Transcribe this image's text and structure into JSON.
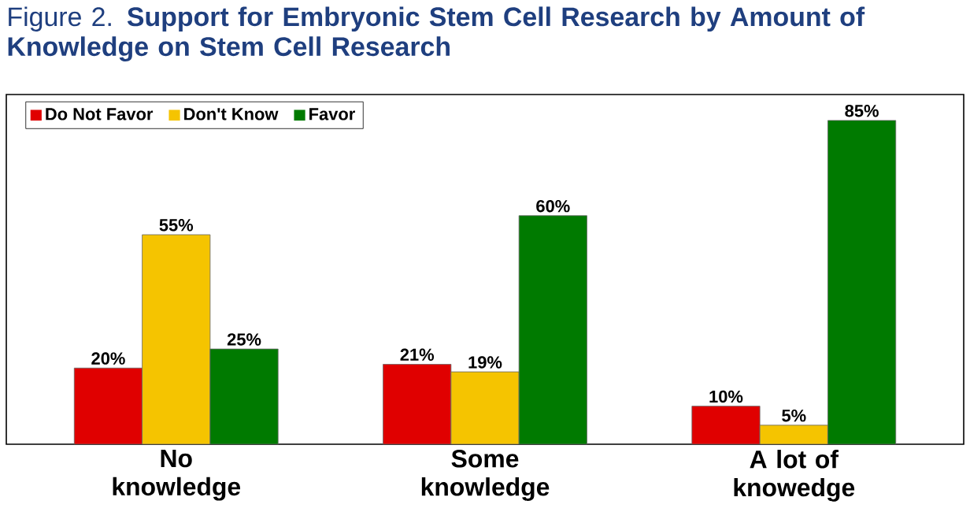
{
  "chart_data": {
    "type": "bar",
    "title": "Figure 2. **Support for Embryonic Stem Cell Research by Amount of Knowledge on Stem Cell Research**",
    "categories": [
      "No knowledge",
      "Some knowledge",
      "A lot of knowedge"
    ],
    "series": [
      {
        "name": "Do Not Favor",
        "color": "#e00000",
        "values": [
          20,
          21,
          10
        ],
        "value_labels": [
          "20%",
          "21%",
          "10%"
        ]
      },
      {
        "name": "Don't Know",
        "color": "#f5c400",
        "values": [
          55,
          19,
          5
        ],
        "value_labels": [
          "55%",
          "19%",
          "5%"
        ]
      },
      {
        "name": "Favor",
        "color": "#007a00",
        "values": [
          25,
          60,
          85
        ],
        "value_labels": [
          "25%",
          "60%",
          "85%"
        ]
      }
    ],
    "legend": "top left"
  }
}
